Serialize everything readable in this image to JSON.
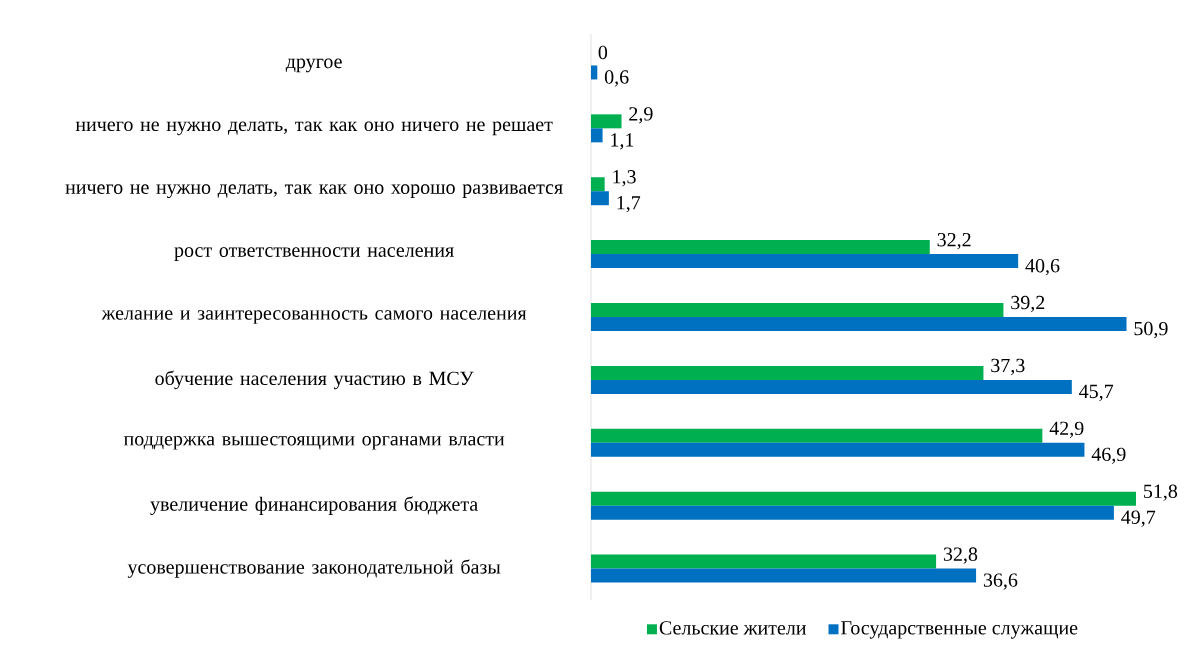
{
  "chart_data": {
    "type": "bar",
    "orientation": "horizontal",
    "legend": "bottom",
    "categories": [
      "другое",
      "ничего не нужно делать, так как оно ничего не решает",
      "ничего не нужно делать, так как оно хорошо развивается",
      "рост ответственности населения",
      "желание и заинтересованность самого населения",
      "обучение населения участию в МСУ",
      "поддержка вышестоящими органами власти",
      "увеличение финансирования бюджета",
      "усовершенствование законодательной базы"
    ],
    "series": [
      {
        "name": "Сельские жители",
        "color": "#00b050",
        "values": [
          0,
          2.9,
          1.3,
          32.2,
          39.2,
          37.3,
          42.9,
          51.8,
          32.8
        ],
        "value_labels": [
          "0",
          "2,9",
          "1,3",
          "32,2",
          "39,2",
          "37,3",
          "42,9",
          "51,8",
          "32,8"
        ]
      },
      {
        "name": "Государственные служащие",
        "color": "#0070c0",
        "values": [
          0.6,
          1.1,
          1.7,
          40.6,
          50.9,
          45.7,
          46.9,
          49.7,
          36.6
        ],
        "value_labels": [
          "0,6",
          "1,1",
          "1,7",
          "40,6",
          "50,9",
          "45,7",
          "46,9",
          "49,7",
          "36,6"
        ]
      }
    ]
  }
}
